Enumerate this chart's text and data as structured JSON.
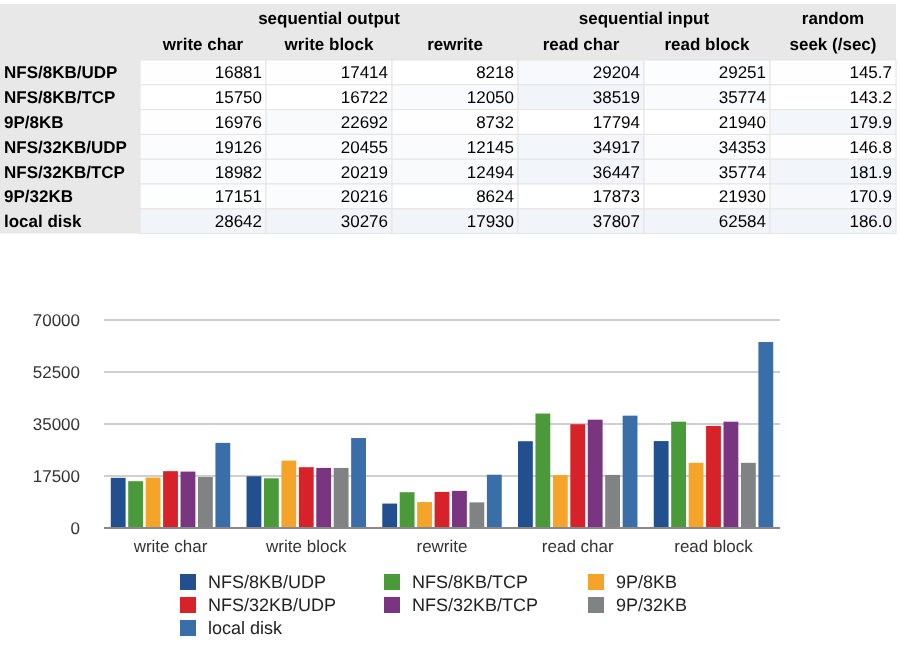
{
  "chart_data": [
    {
      "type": "heatmap",
      "categories": [
        "write char",
        "write block",
        "rewrite",
        "read char",
        "read block",
        "random seek (/sec)"
      ],
      "y_categories": [
        "NFS/8KB/UDP",
        "NFS/8KB/TCP",
        "9P/8KB",
        "NFS/32KB/UDP",
        "NFS/32KB/TCP",
        "9P/32KB",
        "local disk"
      ],
      "annotations": [
        "sequential output",
        "sequential input"
      ],
      "cells": [
        [
          16881,
          17414,
          8218,
          29204,
          29251,
          145.7
        ],
        [
          15750,
          16722,
          12050,
          38519,
          35774,
          143.2
        ],
        [
          16976,
          22692,
          8732,
          17794,
          21940,
          179.9
        ],
        [
          19126,
          20455,
          12145,
          34917,
          34353,
          146.8
        ],
        [
          18982,
          20219,
          12494,
          36447,
          35774,
          181.9
        ],
        [
          17151,
          20216,
          8624,
          17873,
          21930,
          170.9
        ],
        [
          28642,
          30276,
          17930,
          37807,
          62584,
          186.0
        ]
      ],
      "cell_labels": [
        [
          "16881",
          "17414",
          "8218",
          "29204",
          "29251",
          "145.7"
        ],
        [
          "15750",
          "16722",
          "12050",
          "38519",
          "35774",
          "143.2"
        ],
        [
          "16976",
          "22692",
          "8732",
          "17794",
          "21940",
          "179.9"
        ],
        [
          "19126",
          "20455",
          "12145",
          "34917",
          "34353",
          "146.8"
        ],
        [
          "18982",
          "20219",
          "12494",
          "36447",
          "35774",
          "181.9"
        ],
        [
          "17151",
          "20216",
          "8624",
          "17873",
          "21930",
          "170.9"
        ],
        [
          "28642",
          "30276",
          "17930",
          "37807",
          "62584",
          "186.0"
        ]
      ]
    },
    {
      "type": "bar",
      "categories": [
        "write char",
        "write block",
        "rewrite",
        "read char",
        "read block"
      ],
      "series": [
        {
          "name": "NFS/8KB/UDP",
          "color": "#22508e",
          "values": [
            16881,
            17414,
            8218,
            29204,
            29251
          ]
        },
        {
          "name": "NFS/8KB/TCP",
          "color": "#4a9a3a",
          "values": [
            15750,
            16722,
            12050,
            38519,
            35774
          ]
        },
        {
          "name": "9P/8KB",
          "color": "#f4a428",
          "values": [
            16976,
            22692,
            8732,
            17794,
            21940
          ]
        },
        {
          "name": "NFS/32KB/UDP",
          "color": "#d8222a",
          "values": [
            19126,
            20455,
            12145,
            34917,
            34353
          ]
        },
        {
          "name": "NFS/32KB/TCP",
          "color": "#7a3580",
          "values": [
            18982,
            20219,
            12494,
            36447,
            35774
          ]
        },
        {
          "name": "9P/32KB",
          "color": "#7f8383",
          "values": [
            17151,
            20216,
            8624,
            17873,
            21930
          ]
        },
        {
          "name": "local disk",
          "color": "#3a6ea8",
          "values": [
            28642,
            30276,
            17930,
            37807,
            62584
          ]
        }
      ],
      "ylim": [
        0,
        70000
      ],
      "yticks": [
        0,
        17500,
        35000,
        52500,
        70000
      ],
      "grid": "y",
      "legend": "bottom"
    }
  ]
}
